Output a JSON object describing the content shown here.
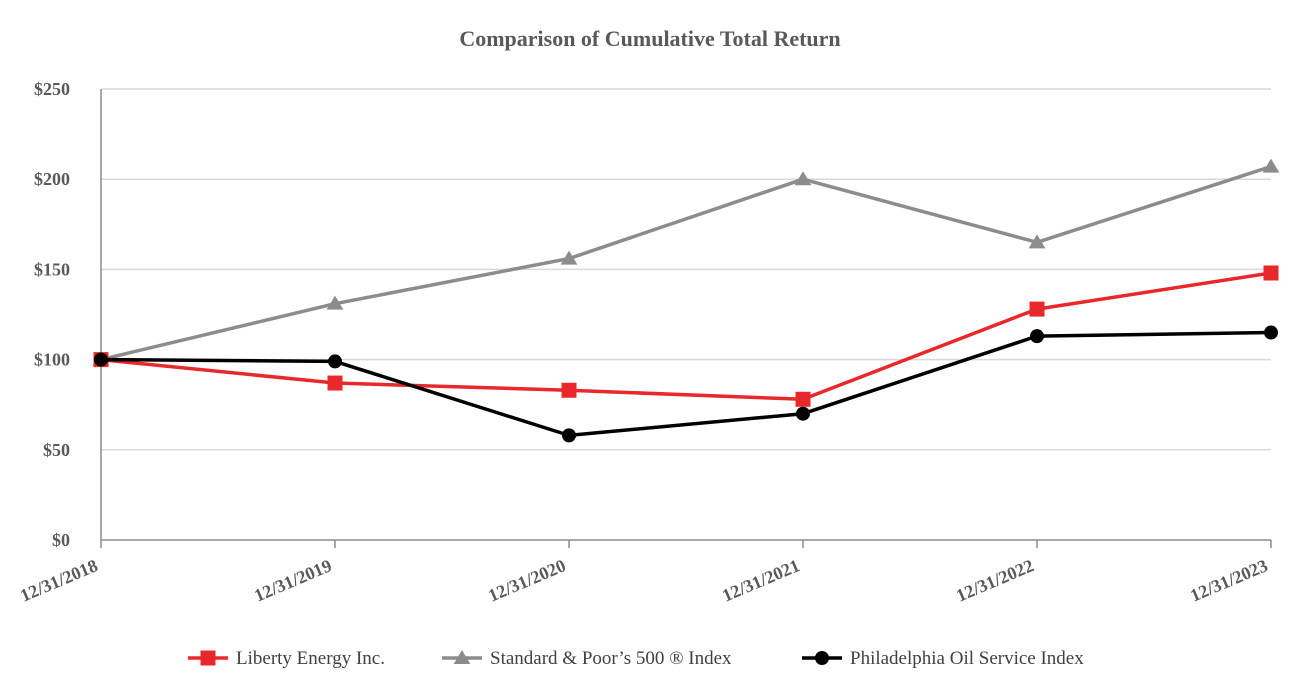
{
  "chart_data": {
    "type": "line",
    "title": "Comparison of Cumulative Total Return",
    "xlabel": "",
    "ylabel": "",
    "categories": [
      "12/31/2018",
      "12/31/2019",
      "12/31/2020",
      "12/31/2021",
      "12/31/2022",
      "12/31/2023"
    ],
    "ylim": [
      0,
      250
    ],
    "yticks": [
      0,
      50,
      100,
      150,
      200,
      250
    ],
    "ytick_labels": [
      "$0",
      "$50",
      "$100",
      "$150",
      "$200",
      "$250"
    ],
    "grid": "horizontal",
    "legend_position": "bottom",
    "series": [
      {
        "name": "Liberty Energy Inc.",
        "values": [
          100,
          87,
          83,
          78,
          128,
          148
        ],
        "color": "#e8282a",
        "marker": "square"
      },
      {
        "name": "Standard & Poor’s 500 ® Index",
        "values": [
          100,
          131,
          156,
          200,
          165,
          207
        ],
        "color": "#8c8c8c",
        "marker": "triangle"
      },
      {
        "name": "Philadelphia Oil Service Index",
        "values": [
          100,
          99,
          58,
          70,
          113,
          115
        ],
        "color": "#000000",
        "marker": "circle"
      }
    ]
  }
}
